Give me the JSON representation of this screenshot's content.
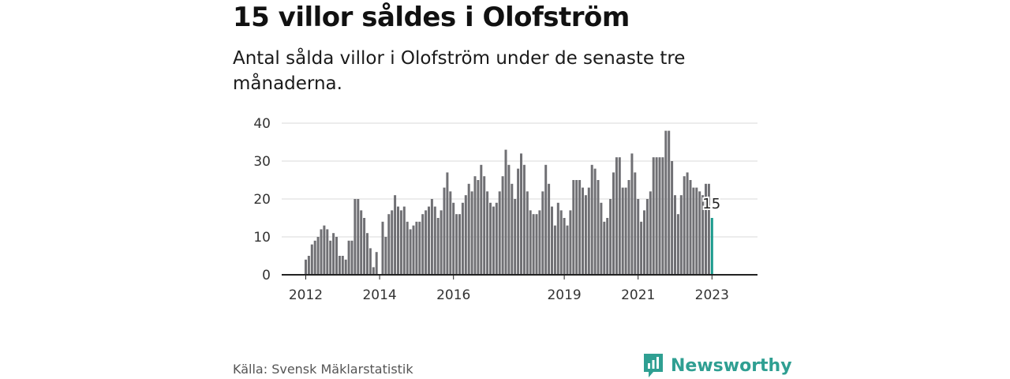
{
  "header": {
    "title": "15 villor såldes i Olofström",
    "subtitle": "Antal sålda villor i Olofström under de senaste tre månaderna."
  },
  "footer": {
    "source": "Källa: Svensk Mäklarstatistik",
    "brand": "Newsworthy",
    "brand_icon": "bar-chart-logo-icon"
  },
  "colors": {
    "bar": "#707074",
    "highlight": "#1a9a8c",
    "grid": "#d9d9d9",
    "axis": "#222222",
    "brand": "#2f9f92"
  },
  "chart_data": {
    "type": "bar",
    "x_axis": {
      "ticks": [
        "2012",
        "2014",
        "2016",
        "2019",
        "2021",
        "2023"
      ]
    },
    "y_axis": {
      "ticks": [
        0,
        10,
        20,
        30,
        40
      ],
      "ylim": [
        0,
        40
      ]
    },
    "grid": true,
    "xlabel": "",
    "ylabel": "",
    "annotation": {
      "text": "15",
      "target": "last-bar"
    },
    "categories": [
      "2012-01",
      "2012-02",
      "2012-03",
      "2012-04",
      "2012-05",
      "2012-06",
      "2012-07",
      "2012-08",
      "2012-09",
      "2012-10",
      "2012-11",
      "2012-12",
      "2013-01",
      "2013-02",
      "2013-03",
      "2013-04",
      "2013-05",
      "2013-06",
      "2013-07",
      "2013-08",
      "2013-09",
      "2013-10",
      "2013-11",
      "2013-12",
      "2014-01",
      "2014-02",
      "2014-03",
      "2014-04",
      "2014-05",
      "2014-06",
      "2014-07",
      "2014-08",
      "2014-09",
      "2014-10",
      "2014-11",
      "2014-12",
      "2015-01",
      "2015-02",
      "2015-03",
      "2015-04",
      "2015-05",
      "2015-06",
      "2015-07",
      "2015-08",
      "2015-09",
      "2015-10",
      "2015-11",
      "2015-12",
      "2016-01",
      "2016-02",
      "2016-03",
      "2016-04",
      "2016-05",
      "2016-06",
      "2016-07",
      "2016-08",
      "2016-09",
      "2016-10",
      "2016-11",
      "2016-12",
      "2017-01",
      "2017-02",
      "2017-03",
      "2017-04",
      "2017-05",
      "2017-06",
      "2017-07",
      "2017-08",
      "2017-09",
      "2017-10",
      "2017-11",
      "2017-12",
      "2018-01",
      "2018-02",
      "2018-03",
      "2018-04",
      "2018-05",
      "2018-06",
      "2018-07",
      "2018-08",
      "2018-09",
      "2018-10",
      "2018-11",
      "2018-12",
      "2019-01",
      "2019-02",
      "2019-03",
      "2019-04",
      "2019-05",
      "2019-06",
      "2019-07",
      "2019-08",
      "2019-09",
      "2019-10",
      "2019-11",
      "2019-12",
      "2020-01",
      "2020-02",
      "2020-03",
      "2020-04",
      "2020-05",
      "2020-06",
      "2020-07",
      "2020-08",
      "2020-09",
      "2020-10",
      "2020-11",
      "2020-12",
      "2021-01",
      "2021-02",
      "2021-03",
      "2021-04",
      "2021-05",
      "2021-06",
      "2021-07",
      "2021-08",
      "2021-09",
      "2021-10",
      "2021-11",
      "2021-12",
      "2022-01",
      "2022-02",
      "2022-03",
      "2022-04",
      "2022-05",
      "2022-06",
      "2022-07",
      "2022-08",
      "2022-09",
      "2022-10",
      "2022-11",
      "2022-12",
      "2023-01"
    ],
    "values": [
      4,
      5,
      8,
      9,
      10,
      12,
      13,
      12,
      9,
      11,
      10,
      5,
      5,
      4,
      9,
      9,
      20,
      20,
      17,
      15,
      11,
      7,
      2,
      6,
      0,
      14,
      10,
      16,
      17,
      21,
      18,
      17,
      18,
      14,
      12,
      13,
      14,
      14,
      16,
      17,
      18,
      20,
      18,
      15,
      17,
      23,
      27,
      22,
      19,
      16,
      16,
      19,
      21,
      24,
      22,
      26,
      25,
      29,
      26,
      22,
      19,
      18,
      19,
      22,
      26,
      33,
      29,
      24,
      20,
      28,
      32,
      29,
      22,
      17,
      16,
      16,
      17,
      22,
      29,
      24,
      18,
      13,
      19,
      17,
      15,
      13,
      17,
      25,
      25,
      25,
      23,
      21,
      23,
      29,
      28,
      25,
      19,
      14,
      15,
      20,
      27,
      31,
      31,
      23,
      23,
      25,
      32,
      27,
      20,
      14,
      17,
      20,
      22,
      31,
      31,
      31,
      31,
      38,
      38,
      30,
      21,
      16,
      21,
      26,
      27,
      25,
      23,
      23,
      22,
      21,
      24,
      24,
      15
    ]
  }
}
